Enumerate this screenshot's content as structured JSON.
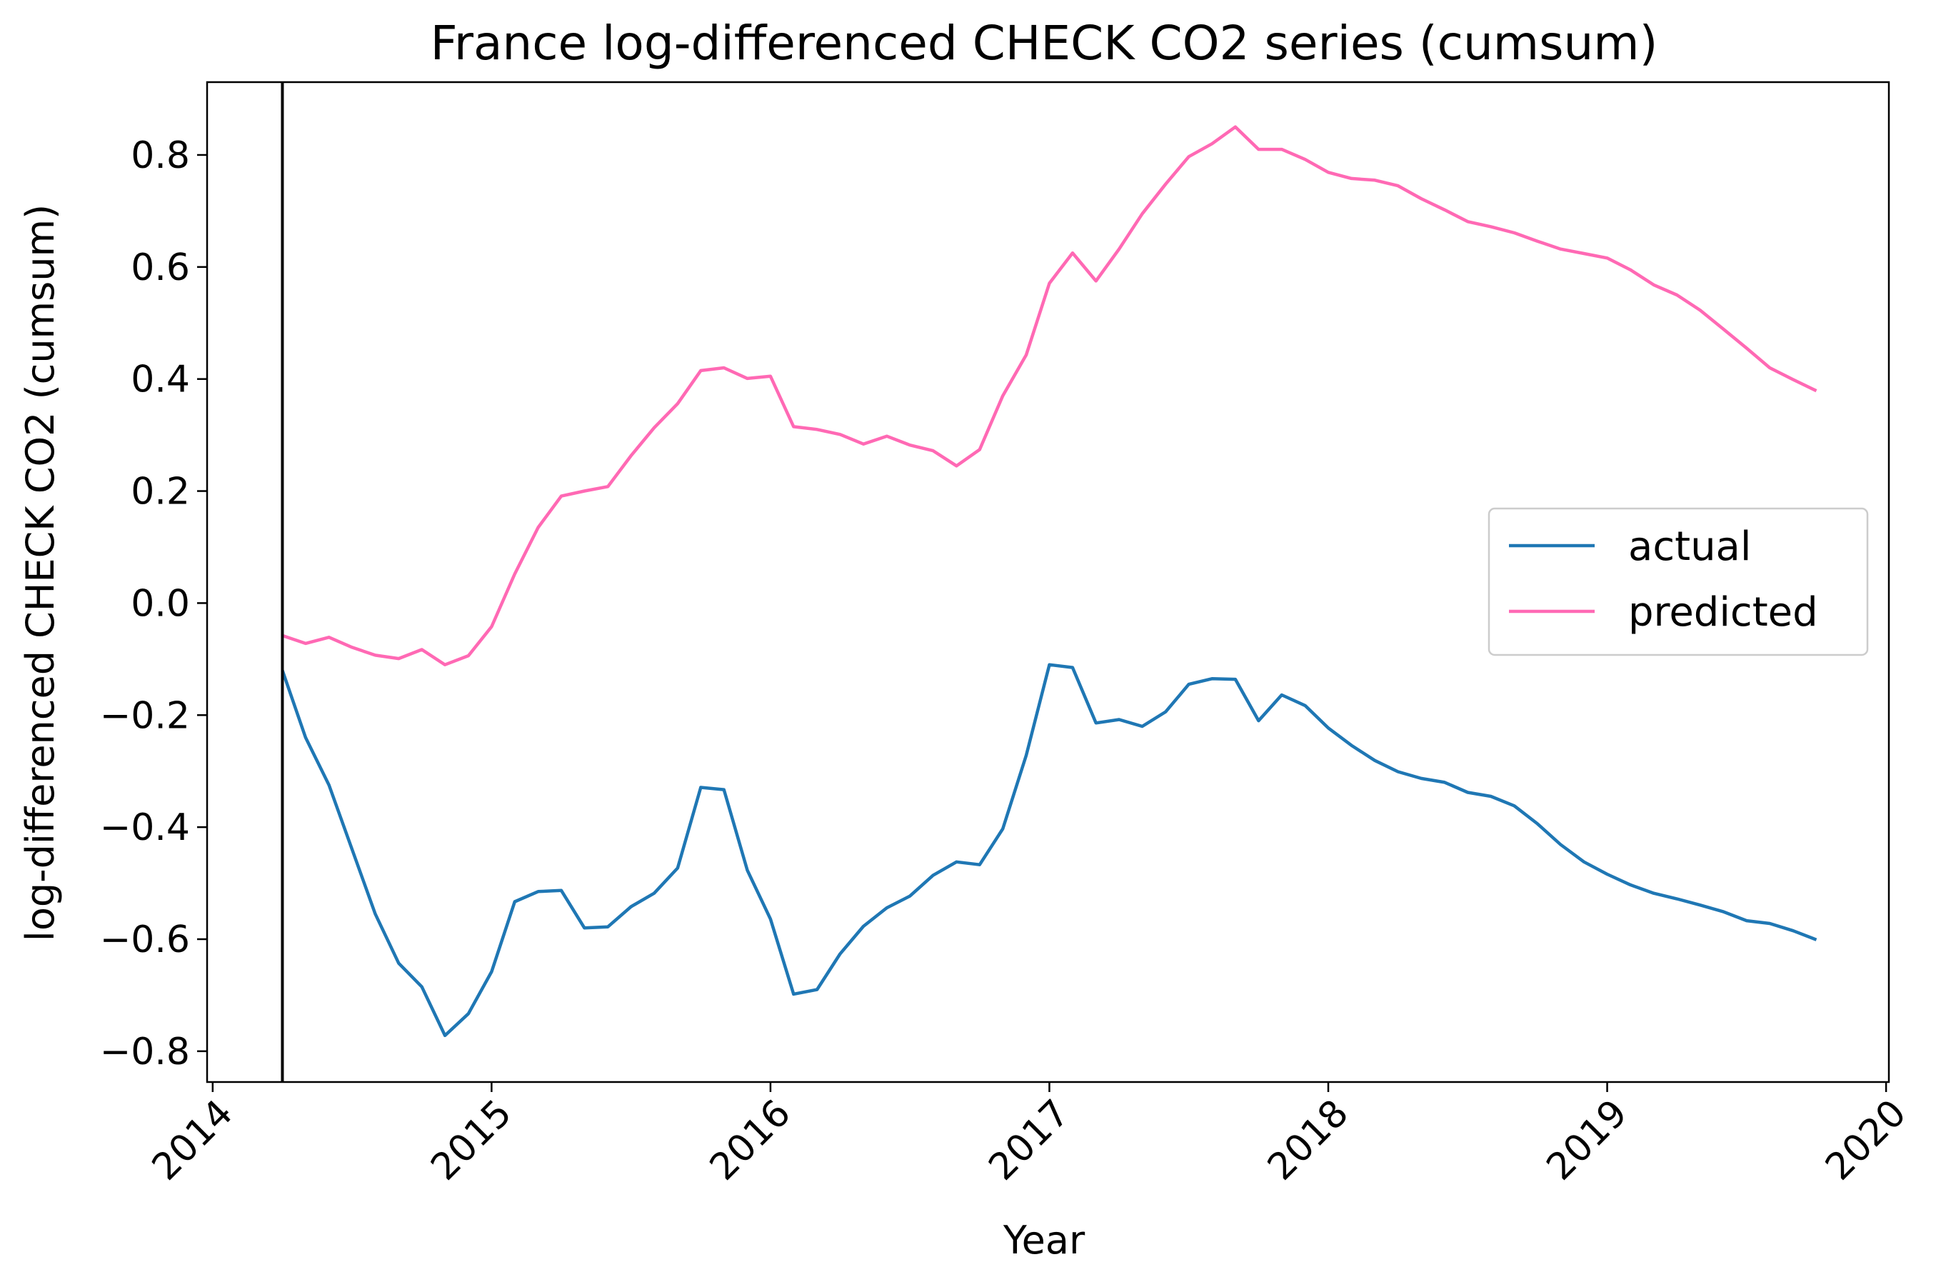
{
  "chart_data": {
    "type": "line",
    "title": "France log-differenced CHECK CO2 series (cumsum)",
    "xlabel": "Year",
    "ylabel": "log-differenced CHECK CO2 (cumsum)",
    "xlim": [
      2013.98,
      2020.01
    ],
    "ylim": [
      -0.855,
      0.93
    ],
    "x_ticks": [
      2014,
      2015,
      2016,
      2017,
      2018,
      2019,
      2020
    ],
    "x_tick_labels": [
      "2014",
      "2015",
      "2016",
      "2017",
      "2018",
      "2019",
      "2020"
    ],
    "y_ticks": [
      -0.8,
      -0.6,
      -0.4,
      -0.2,
      0.0,
      0.2,
      0.4,
      0.6,
      0.8
    ],
    "y_tick_labels": [
      "−0.8",
      "−0.6",
      "−0.4",
      "−0.2",
      "0.0",
      "0.2",
      "0.4",
      "0.6",
      "0.8"
    ],
    "vline_x": 2014.25,
    "legend_position": "center-right",
    "grid": false,
    "x": [
      2014.25,
      2014.333,
      2014.417,
      2014.5,
      2014.583,
      2014.667,
      2014.75,
      2014.833,
      2014.917,
      2015.0,
      2015.083,
      2015.167,
      2015.25,
      2015.333,
      2015.417,
      2015.5,
      2015.583,
      2015.667,
      2015.75,
      2015.833,
      2015.917,
      2016.0,
      2016.083,
      2016.167,
      2016.25,
      2016.333,
      2016.417,
      2016.5,
      2016.583,
      2016.667,
      2016.75,
      2016.833,
      2016.917,
      2017.0,
      2017.083,
      2017.167,
      2017.25,
      2017.333,
      2017.417,
      2017.5,
      2017.583,
      2017.667,
      2017.75,
      2017.833,
      2017.917,
      2018.0,
      2018.083,
      2018.167,
      2018.25,
      2018.333,
      2018.417,
      2018.5,
      2018.583,
      2018.667,
      2018.75,
      2018.833,
      2018.917,
      2019.0,
      2019.083,
      2019.167,
      2019.25,
      2019.333,
      2019.417,
      2019.5,
      2019.583,
      2019.667,
      2019.75
    ],
    "series": [
      {
        "name": "actual",
        "color": "#1f77b4",
        "values": [
          -0.12,
          -0.24,
          -0.325,
          -0.44,
          -0.555,
          -0.643,
          -0.685,
          -0.772,
          -0.733,
          -0.658,
          -0.533,
          -0.515,
          -0.513,
          -0.58,
          -0.578,
          -0.542,
          -0.518,
          -0.473,
          -0.329,
          -0.333,
          -0.477,
          -0.564,
          -0.698,
          -0.69,
          -0.626,
          -0.577,
          -0.544,
          -0.523,
          -0.486,
          -0.462,
          -0.467,
          -0.403,
          -0.272,
          -0.11,
          -0.115,
          -0.214,
          -0.208,
          -0.22,
          -0.194,
          -0.145,
          -0.135,
          -0.136,
          -0.21,
          -0.164,
          -0.183,
          -0.223,
          -0.254,
          -0.281,
          -0.301,
          -0.313,
          -0.32,
          -0.338,
          -0.345,
          -0.362,
          -0.394,
          -0.431,
          -0.462,
          -0.484,
          -0.503,
          -0.518,
          -0.528,
          -0.539,
          -0.551,
          -0.567,
          -0.572,
          -0.585,
          -0.601
        ]
      },
      {
        "name": "predicted",
        "color": "#ff69b4",
        "values": [
          -0.058,
          -0.072,
          -0.061,
          -0.079,
          -0.093,
          -0.099,
          -0.083,
          -0.11,
          -0.094,
          -0.042,
          0.052,
          0.135,
          0.191,
          0.2,
          0.208,
          0.263,
          0.313,
          0.356,
          0.415,
          0.42,
          0.401,
          0.405,
          0.315,
          0.31,
          0.301,
          0.284,
          0.298,
          0.282,
          0.272,
          0.245,
          0.274,
          0.37,
          0.443,
          0.571,
          0.625,
          0.575,
          0.632,
          0.695,
          0.748,
          0.797,
          0.82,
          0.85,
          0.81,
          0.81,
          0.792,
          0.769,
          0.758,
          0.755,
          0.745,
          0.722,
          0.702,
          0.681,
          0.672,
          0.661,
          0.646,
          0.632,
          0.624,
          0.616,
          0.595,
          0.568,
          0.55,
          0.523,
          0.489,
          0.455,
          0.42,
          0.399,
          0.379
        ]
      }
    ]
  }
}
